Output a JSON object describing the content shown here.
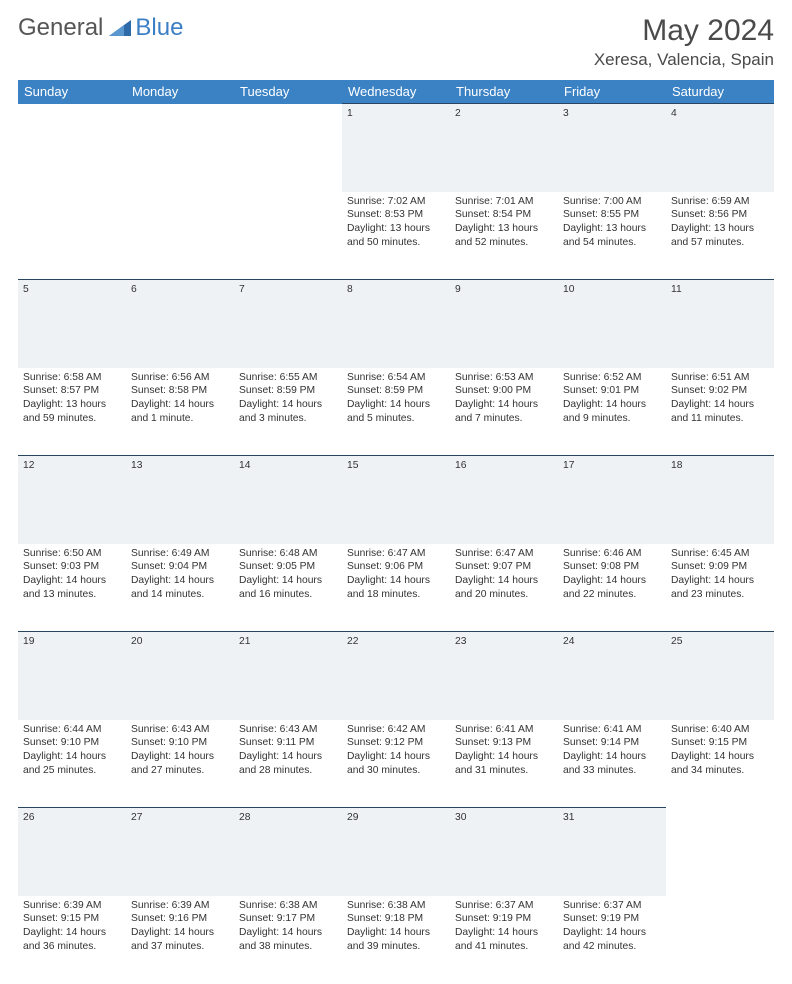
{
  "logo": {
    "text1": "General",
    "text2": "Blue",
    "icon_color": "#2f6aa8"
  },
  "title": "May 2024",
  "location": "Xeresa, Valencia, Spain",
  "colors": {
    "header_bg": "#3b82c4",
    "header_fg": "#ffffff",
    "daynum_bg": "#eef2f5",
    "daynum_border": "#2a4560",
    "text": "#333333",
    "background": "#ffffff"
  },
  "weekdays": [
    "Sunday",
    "Monday",
    "Tuesday",
    "Wednesday",
    "Thursday",
    "Friday",
    "Saturday"
  ],
  "weeks": [
    [
      null,
      null,
      null,
      {
        "n": "1",
        "sr": "7:02 AM",
        "ss": "8:53 PM",
        "dl": "13 hours and 50 minutes."
      },
      {
        "n": "2",
        "sr": "7:01 AM",
        "ss": "8:54 PM",
        "dl": "13 hours and 52 minutes."
      },
      {
        "n": "3",
        "sr": "7:00 AM",
        "ss": "8:55 PM",
        "dl": "13 hours and 54 minutes."
      },
      {
        "n": "4",
        "sr": "6:59 AM",
        "ss": "8:56 PM",
        "dl": "13 hours and 57 minutes."
      }
    ],
    [
      {
        "n": "5",
        "sr": "6:58 AM",
        "ss": "8:57 PM",
        "dl": "13 hours and 59 minutes."
      },
      {
        "n": "6",
        "sr": "6:56 AM",
        "ss": "8:58 PM",
        "dl": "14 hours and 1 minute."
      },
      {
        "n": "7",
        "sr": "6:55 AM",
        "ss": "8:59 PM",
        "dl": "14 hours and 3 minutes."
      },
      {
        "n": "8",
        "sr": "6:54 AM",
        "ss": "8:59 PM",
        "dl": "14 hours and 5 minutes."
      },
      {
        "n": "9",
        "sr": "6:53 AM",
        "ss": "9:00 PM",
        "dl": "14 hours and 7 minutes."
      },
      {
        "n": "10",
        "sr": "6:52 AM",
        "ss": "9:01 PM",
        "dl": "14 hours and 9 minutes."
      },
      {
        "n": "11",
        "sr": "6:51 AM",
        "ss": "9:02 PM",
        "dl": "14 hours and 11 minutes."
      }
    ],
    [
      {
        "n": "12",
        "sr": "6:50 AM",
        "ss": "9:03 PM",
        "dl": "14 hours and 13 minutes."
      },
      {
        "n": "13",
        "sr": "6:49 AM",
        "ss": "9:04 PM",
        "dl": "14 hours and 14 minutes."
      },
      {
        "n": "14",
        "sr": "6:48 AM",
        "ss": "9:05 PM",
        "dl": "14 hours and 16 minutes."
      },
      {
        "n": "15",
        "sr": "6:47 AM",
        "ss": "9:06 PM",
        "dl": "14 hours and 18 minutes."
      },
      {
        "n": "16",
        "sr": "6:47 AM",
        "ss": "9:07 PM",
        "dl": "14 hours and 20 minutes."
      },
      {
        "n": "17",
        "sr": "6:46 AM",
        "ss": "9:08 PM",
        "dl": "14 hours and 22 minutes."
      },
      {
        "n": "18",
        "sr": "6:45 AM",
        "ss": "9:09 PM",
        "dl": "14 hours and 23 minutes."
      }
    ],
    [
      {
        "n": "19",
        "sr": "6:44 AM",
        "ss": "9:10 PM",
        "dl": "14 hours and 25 minutes."
      },
      {
        "n": "20",
        "sr": "6:43 AM",
        "ss": "9:10 PM",
        "dl": "14 hours and 27 minutes."
      },
      {
        "n": "21",
        "sr": "6:43 AM",
        "ss": "9:11 PM",
        "dl": "14 hours and 28 minutes."
      },
      {
        "n": "22",
        "sr": "6:42 AM",
        "ss": "9:12 PM",
        "dl": "14 hours and 30 minutes."
      },
      {
        "n": "23",
        "sr": "6:41 AM",
        "ss": "9:13 PM",
        "dl": "14 hours and 31 minutes."
      },
      {
        "n": "24",
        "sr": "6:41 AM",
        "ss": "9:14 PM",
        "dl": "14 hours and 33 minutes."
      },
      {
        "n": "25",
        "sr": "6:40 AM",
        "ss": "9:15 PM",
        "dl": "14 hours and 34 minutes."
      }
    ],
    [
      {
        "n": "26",
        "sr": "6:39 AM",
        "ss": "9:15 PM",
        "dl": "14 hours and 36 minutes."
      },
      {
        "n": "27",
        "sr": "6:39 AM",
        "ss": "9:16 PM",
        "dl": "14 hours and 37 minutes."
      },
      {
        "n": "28",
        "sr": "6:38 AM",
        "ss": "9:17 PM",
        "dl": "14 hours and 38 minutes."
      },
      {
        "n": "29",
        "sr": "6:38 AM",
        "ss": "9:18 PM",
        "dl": "14 hours and 39 minutes."
      },
      {
        "n": "30",
        "sr": "6:37 AM",
        "ss": "9:19 PM",
        "dl": "14 hours and 41 minutes."
      },
      {
        "n": "31",
        "sr": "6:37 AM",
        "ss": "9:19 PM",
        "dl": "14 hours and 42 minutes."
      },
      null
    ]
  ],
  "labels": {
    "sunrise": "Sunrise:",
    "sunset": "Sunset:",
    "daylight": "Daylight:"
  }
}
